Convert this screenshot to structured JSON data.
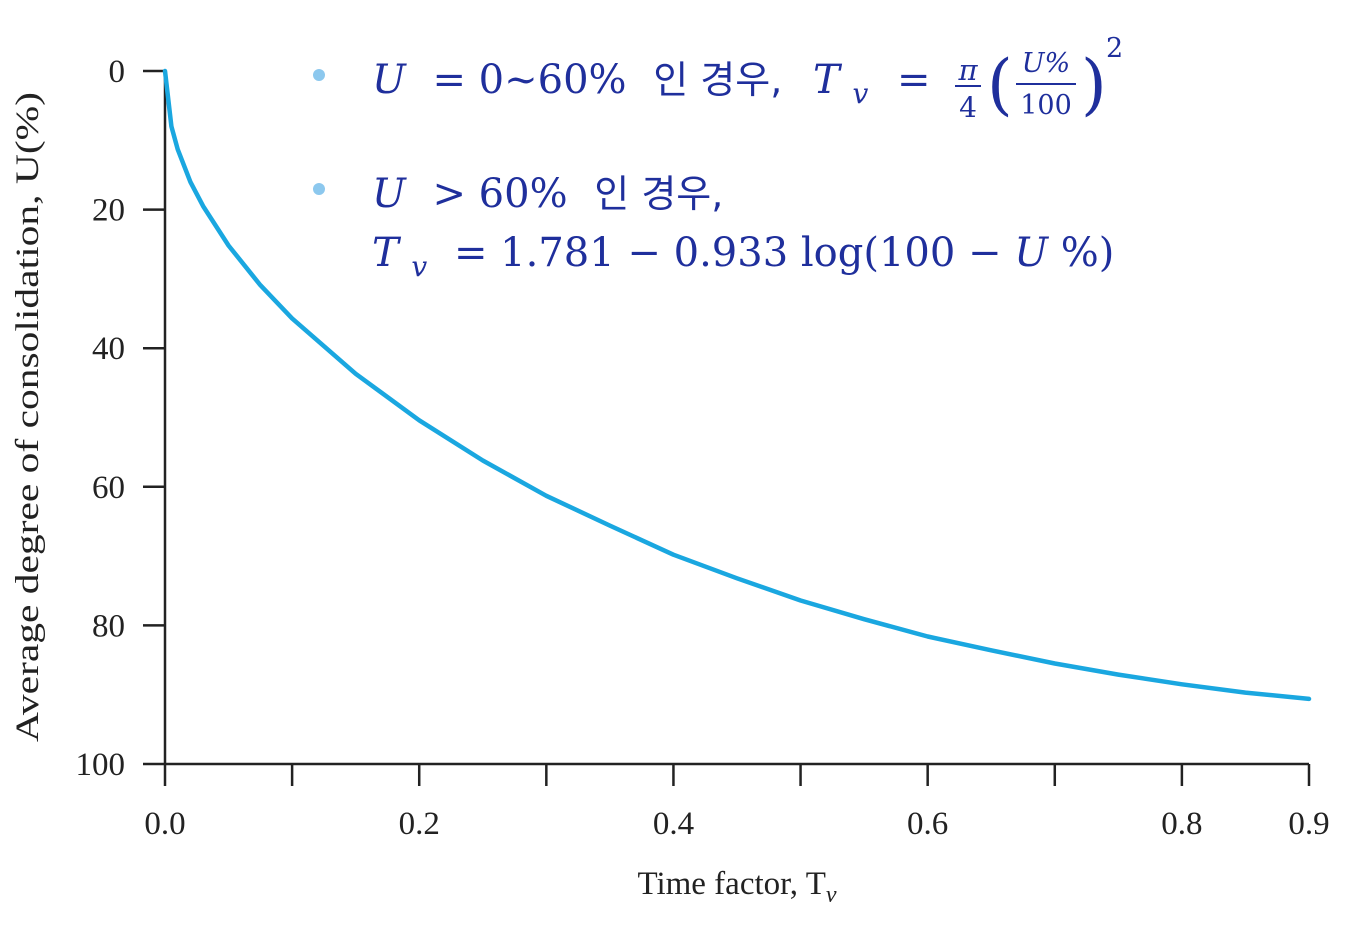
{
  "chart_data": {
    "type": "line",
    "xlabel": "Time factor, T",
    "xlabel_sub": "v",
    "ylabel": "Average degree of consolidation, U(%)",
    "xlim": [
      0,
      0.9
    ],
    "ylim": [
      0,
      100
    ],
    "y_inverted": true,
    "x_ticks": [
      0,
      0.1,
      0.2,
      0.3,
      0.4,
      0.5,
      0.6,
      0.7,
      0.8,
      0.9
    ],
    "x_tick_labels": [
      {
        "value": 0.0,
        "label": "0.0"
      },
      {
        "value": 0.2,
        "label": "0.2"
      },
      {
        "value": 0.4,
        "label": "0.4"
      },
      {
        "value": 0.6,
        "label": "0.6"
      },
      {
        "value": 0.8,
        "label": "0.8"
      },
      {
        "value": 0.9,
        "label": "0.9"
      }
    ],
    "y_ticks": [
      {
        "value": 0,
        "label": "0"
      },
      {
        "value": 20,
        "label": "20"
      },
      {
        "value": 40,
        "label": "40"
      },
      {
        "value": 60,
        "label": "60"
      },
      {
        "value": 80,
        "label": "80"
      },
      {
        "value": 100,
        "label": "100"
      }
    ],
    "grid": false,
    "line_color": "#1aa7e0",
    "series": [
      {
        "x": [
          0.0,
          0.005,
          0.01,
          0.02,
          0.03,
          0.05,
          0.075,
          0.1,
          0.15,
          0.2,
          0.25,
          0.3,
          0.35,
          0.4,
          0.45,
          0.5,
          0.55,
          0.6,
          0.65,
          0.7,
          0.75,
          0.8,
          0.85,
          0.9
        ],
        "values": [
          0,
          8.0,
          11.3,
          16.0,
          19.5,
          25.2,
          30.9,
          35.7,
          43.7,
          50.4,
          56.2,
          61.3,
          65.6,
          69.8,
          73.2,
          76.4,
          79.1,
          81.6,
          83.6,
          85.5,
          87.1,
          88.5,
          89.7,
          90.6
        ]
      }
    ],
    "annotations": {
      "line1": {
        "U": "U",
        "cond": "= 0~60%",
        "ko": "인 경우,",
        "T": "T",
        "v": "v",
        "eq": "=",
        "pi": "π",
        "four": "4",
        "frac_num": "U%",
        "frac_den": "100",
        "lparen": "(",
        "rparen": ")",
        "exp": "2"
      },
      "line2": {
        "U": "U",
        "cond": "> 60%",
        "ko": "인 경우,"
      },
      "line3": {
        "T": "T",
        "v": "v",
        "eq": "= 1.781 − 0.933 log(100 − ",
        "U": "U",
        "tail": "%)"
      },
      "bullet_color": "#8cc8ee",
      "text_color": "#1f2f9c"
    }
  }
}
